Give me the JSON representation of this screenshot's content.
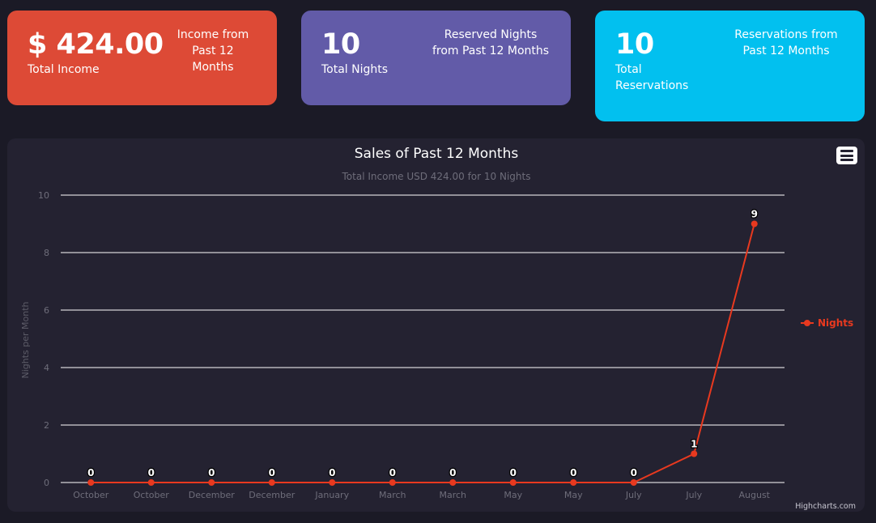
{
  "cards": {
    "income": {
      "value": "$ 424.00",
      "label": "Total Income",
      "side_text": [
        "Income from",
        "Past 12",
        "Months"
      ]
    },
    "nights": {
      "value": "10",
      "label": "Total Nights",
      "side_text": [
        "Reserved Nights",
        "from Past 12 Months"
      ]
    },
    "reservations": {
      "value": "10",
      "label_lines": [
        "Total",
        "Reservations"
      ],
      "side_text": [
        "Reservations from",
        "Past 12 Months"
      ]
    }
  },
  "colors": {
    "income": "#dd4a36",
    "nights": "#625ba8",
    "reservations": "#02c0ef",
    "series": "#e8391f"
  },
  "chart_menu_icon": "hamburger-menu-icon",
  "credit": "Highcharts.com",
  "chart_data": {
    "type": "line",
    "title": "Sales of Past 12 Months",
    "subtitle": "Total Income USD 424.00 for 10 Nights",
    "ylabel": "Nights per Month",
    "xlabel": "",
    "categories": [
      "October",
      "October",
      "December",
      "December",
      "January",
      "March",
      "March",
      "May",
      "May",
      "July",
      "July",
      "August"
    ],
    "series": [
      {
        "name": "Nights",
        "values": [
          0,
          0,
          0,
          0,
          0,
          0,
          0,
          0,
          0,
          0,
          1,
          9
        ]
      }
    ],
    "ylim": [
      0,
      10
    ],
    "yticks": [
      0,
      2,
      4,
      6,
      8,
      10
    ],
    "grid": true,
    "legend": "right"
  }
}
